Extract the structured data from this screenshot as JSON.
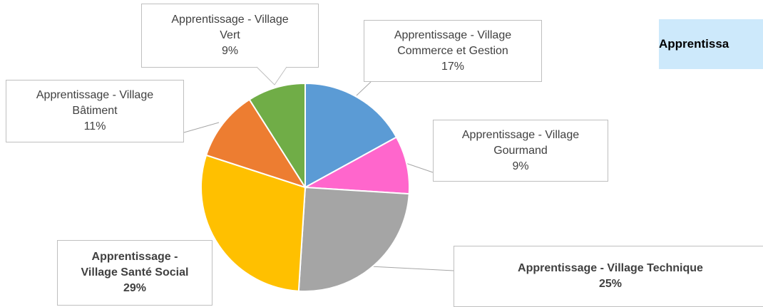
{
  "chart_data": {
    "type": "pie",
    "title": "Apprentissa",
    "categories": [
      "Apprentissage - Village Commerce et Gestion",
      "Apprentissage - Village Gourmand",
      "Apprentissage - Village Technique",
      "Apprentissage - Village Santé Social",
      "Apprentissage - Village Bâtiment",
      "Apprentissage - Village Vert"
    ],
    "values": [
      17,
      9,
      25,
      29,
      11,
      9
    ],
    "value_labels": [
      "17%",
      "9%",
      "25%",
      "29%",
      "11%",
      "9%"
    ],
    "colors": [
      "#5b9bd5",
      "#ff66cc",
      "#a5a5a5",
      "#ffc000",
      "#ed7d31",
      "#70ad47"
    ]
  }
}
